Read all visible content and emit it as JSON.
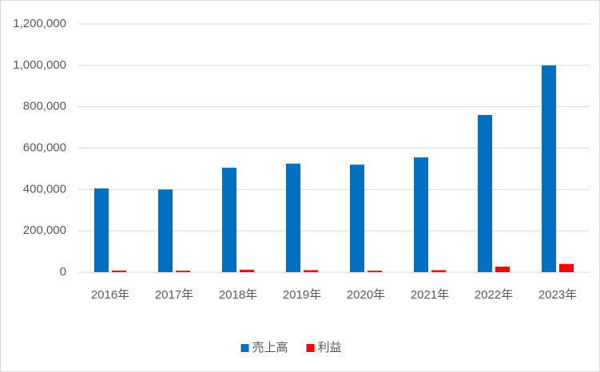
{
  "chart_data": {
    "type": "bar",
    "categories": [
      "2016年",
      "2017年",
      "2018年",
      "2019年",
      "2020年",
      "2021年",
      "2022年",
      "2023年"
    ],
    "series": [
      {
        "name": "売上高",
        "color": "#0070c0",
        "values": [
          405000,
          400000,
          505000,
          525000,
          520000,
          555000,
          760000,
          1000000
        ]
      },
      {
        "name": "利益",
        "color": "#ff0000",
        "values": [
          8000,
          7000,
          12000,
          10000,
          7000,
          10000,
          27000,
          40000
        ]
      }
    ],
    "ylim": [
      0,
      1200000
    ],
    "yticks": [
      0,
      {
        "value": 200000,
        "label": "200,000"
      },
      {
        "value": 400000,
        "label": "400,000"
      },
      {
        "value": 600000,
        "label": "600,000"
      },
      {
        "value": 800000,
        "label": "800,000"
      },
      {
        "value": 1000000,
        "label": "1,000,000"
      },
      {
        "value": 1200000,
        "label": "1,200,000"
      }
    ],
    "grid": true,
    "legend": "bottom"
  }
}
